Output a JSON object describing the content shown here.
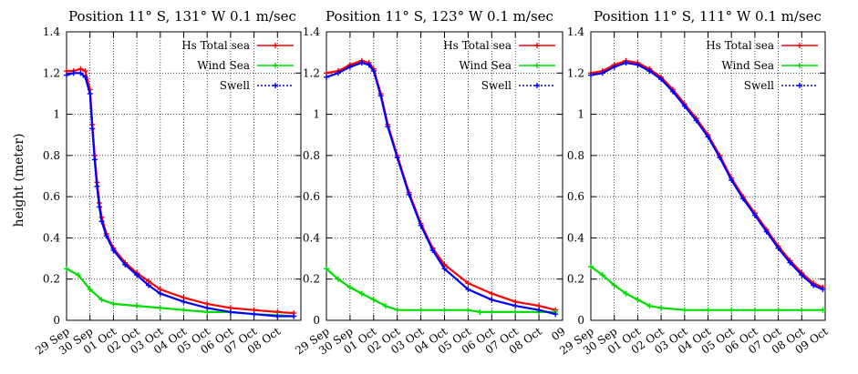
{
  "ylabel": "height (meter)",
  "chart_data": [
    {
      "type": "line",
      "title": "Position 11° S, 131° W 0.1 m/sec",
      "ylim": [
        0,
        1.4
      ],
      "yticks": [
        "0",
        "0.2",
        "0.4",
        "0.6",
        "0.8",
        "1",
        "1.2",
        "1.4"
      ],
      "xlim": [
        0,
        10
      ],
      "xticks": [
        "29 Sep",
        "30 Sep",
        "01 Oct",
        "02 Oct",
        "03 Oct",
        "04 Oct",
        "05 Oct",
        "06 Oct",
        "07 Oct",
        "08 Oct"
      ],
      "grid": true,
      "legend": "top-right",
      "series": [
        {
          "name": "Hs Total sea",
          "color": "#ff0000",
          "x": [
            0.0,
            0.3,
            0.6,
            0.8,
            1.0,
            1.1,
            1.2,
            1.3,
            1.4,
            1.5,
            1.7,
            2.0,
            2.5,
            3.0,
            3.5,
            4.0,
            5.0,
            6.0,
            7.0,
            8.0,
            9.0,
            9.7
          ],
          "y": [
            1.21,
            1.21,
            1.22,
            1.21,
            1.12,
            0.95,
            0.8,
            0.67,
            0.57,
            0.5,
            0.42,
            0.35,
            0.28,
            0.23,
            0.19,
            0.15,
            0.11,
            0.08,
            0.06,
            0.05,
            0.04,
            0.035
          ]
        },
        {
          "name": "Wind Sea",
          "color": "#00dd00",
          "x": [
            0.0,
            0.5,
            1.0,
            1.5,
            2.0,
            3.0,
            4.0,
            5.0,
            6.0,
            7.0,
            8.0,
            9.0,
            9.7
          ],
          "y": [
            0.25,
            0.22,
            0.15,
            0.1,
            0.08,
            0.07,
            0.06,
            0.05,
            0.04,
            0.04,
            0.03,
            0.025,
            0.02
          ]
        },
        {
          "name": "Swell",
          "color": "#0000ff",
          "x": [
            0.0,
            0.3,
            0.6,
            0.8,
            1.0,
            1.1,
            1.2,
            1.3,
            1.4,
            1.5,
            1.7,
            2.0,
            2.5,
            3.0,
            3.5,
            4.0,
            5.0,
            6.0,
            7.0,
            8.0,
            9.0,
            9.7
          ],
          "y": [
            1.19,
            1.2,
            1.2,
            1.18,
            1.1,
            0.93,
            0.78,
            0.65,
            0.55,
            0.48,
            0.41,
            0.34,
            0.27,
            0.22,
            0.17,
            0.13,
            0.09,
            0.06,
            0.04,
            0.03,
            0.02,
            0.02
          ]
        }
      ]
    },
    {
      "type": "line",
      "title": "Position 11° S, 123° W 0.1 m/sec",
      "ylim": [
        0,
        1.4
      ],
      "yticks": [
        "0",
        "0.2",
        "0.4",
        "0.6",
        "0.8",
        "1",
        "1.2",
        "1.4"
      ],
      "xlim": [
        0,
        10
      ],
      "xticks": [
        "29 Sep",
        "30 Sep",
        "01 Oct",
        "02 Oct",
        "03 Oct",
        "04 Oct",
        "05 Oct",
        "06 Oct",
        "07 Oct",
        "08 Oct",
        "09"
      ],
      "grid": true,
      "legend": "top-right",
      "series": [
        {
          "name": "Hs Total sea",
          "color": "#ff0000",
          "x": [
            0.0,
            0.5,
            1.0,
            1.5,
            1.8,
            2.0,
            2.3,
            2.6,
            3.0,
            3.5,
            4.0,
            4.5,
            5.0,
            6.0,
            7.0,
            8.0,
            9.0,
            9.7
          ],
          "y": [
            1.2,
            1.21,
            1.24,
            1.26,
            1.25,
            1.22,
            1.1,
            0.95,
            0.8,
            0.62,
            0.47,
            0.35,
            0.27,
            0.18,
            0.13,
            0.09,
            0.07,
            0.05
          ]
        },
        {
          "name": "Wind Sea",
          "color": "#00dd00",
          "x": [
            0.0,
            0.5,
            1.0,
            1.5,
            2.0,
            2.5,
            3.0,
            4.0,
            5.0,
            6.0,
            6.5,
            7.0,
            8.0,
            9.0,
            9.7
          ],
          "y": [
            0.25,
            0.2,
            0.16,
            0.13,
            0.1,
            0.07,
            0.05,
            0.05,
            0.05,
            0.05,
            0.04,
            0.04,
            0.04,
            0.04,
            0.04
          ]
        },
        {
          "name": "Swell",
          "color": "#0000ff",
          "x": [
            0.0,
            0.5,
            1.0,
            1.5,
            1.8,
            2.0,
            2.3,
            2.6,
            3.0,
            3.5,
            4.0,
            4.5,
            5.0,
            6.0,
            7.0,
            8.0,
            9.0,
            9.7
          ],
          "y": [
            1.18,
            1.2,
            1.23,
            1.25,
            1.24,
            1.21,
            1.09,
            0.94,
            0.79,
            0.61,
            0.46,
            0.34,
            0.25,
            0.15,
            0.1,
            0.07,
            0.05,
            0.03
          ]
        }
      ]
    },
    {
      "type": "line",
      "title": "Position 11° S, 111° W 0.1 m/sec",
      "ylim": [
        0,
        1.4
      ],
      "yticks": [
        "0",
        "0.2",
        "0.4",
        "0.6",
        "0.8",
        "1",
        "1.2",
        "1.4"
      ],
      "xlim": [
        0,
        10
      ],
      "xticks": [
        "29 Sep",
        "30 Sep",
        "01 Oct",
        "02 Oct",
        "03 Oct",
        "04 Oct",
        "05 Oct",
        "06 Oct",
        "07 Oct",
        "08 Oct",
        "09 Oct"
      ],
      "grid": true,
      "legend": "top-right",
      "series": [
        {
          "name": "Hs Total sea",
          "color": "#ff0000",
          "x": [
            0.0,
            0.5,
            1.0,
            1.5,
            2.0,
            2.5,
            3.0,
            3.5,
            4.0,
            4.5,
            5.0,
            5.5,
            6.0,
            6.5,
            7.0,
            7.5,
            8.0,
            8.5,
            9.0,
            9.5,
            9.9
          ],
          "y": [
            1.2,
            1.21,
            1.24,
            1.26,
            1.25,
            1.22,
            1.18,
            1.12,
            1.05,
            0.98,
            0.9,
            0.8,
            0.69,
            0.6,
            0.52,
            0.44,
            0.36,
            0.29,
            0.23,
            0.18,
            0.16
          ]
        },
        {
          "name": "Wind Sea",
          "color": "#00dd00",
          "x": [
            0.0,
            0.5,
            1.0,
            1.5,
            2.0,
            2.5,
            3.0,
            4.0,
            5.0,
            6.0,
            7.0,
            8.0,
            9.0,
            9.9
          ],
          "y": [
            0.26,
            0.22,
            0.17,
            0.13,
            0.1,
            0.07,
            0.06,
            0.05,
            0.05,
            0.05,
            0.05,
            0.05,
            0.05,
            0.05
          ]
        },
        {
          "name": "Swell",
          "color": "#0000ff",
          "x": [
            0.0,
            0.5,
            1.0,
            1.5,
            2.0,
            2.5,
            3.0,
            3.5,
            4.0,
            4.5,
            5.0,
            5.5,
            6.0,
            6.5,
            7.0,
            7.5,
            8.0,
            8.5,
            9.0,
            9.5,
            9.9
          ],
          "y": [
            1.19,
            1.2,
            1.23,
            1.25,
            1.24,
            1.21,
            1.17,
            1.11,
            1.04,
            0.97,
            0.89,
            0.79,
            0.68,
            0.59,
            0.51,
            0.43,
            0.35,
            0.28,
            0.22,
            0.17,
            0.15
          ]
        }
      ]
    }
  ]
}
